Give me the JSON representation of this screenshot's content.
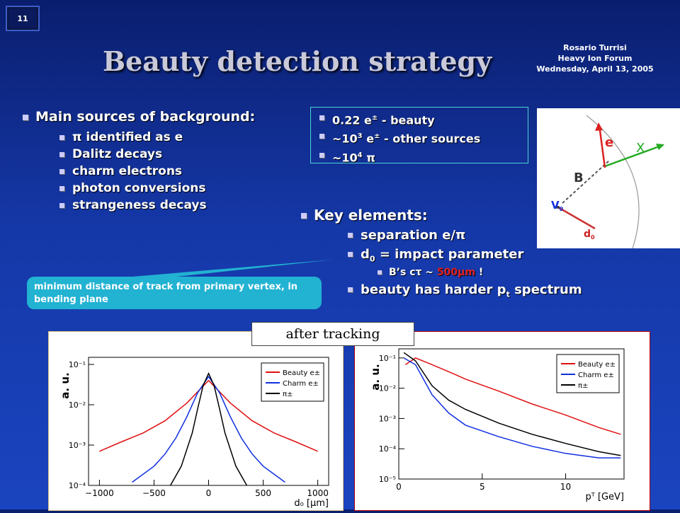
{
  "slide": {
    "number": "11",
    "title": "Beauty detection strategy"
  },
  "author": {
    "name": "Rosario Turrisi",
    "event": "Heavy Ion Forum",
    "date": "Wednesday, April 13, 2005"
  },
  "background": {
    "heading": "Main sources of background:",
    "items": [
      "π identified as e",
      "Dalitz decays",
      "charm electrons",
      "photon conversions",
      "strangeness decays"
    ]
  },
  "rates": {
    "items": [
      {
        "pre": "0.22 e",
        "sup": "±",
        "post": " - beauty"
      },
      {
        "pre": "~10",
        "sup": "3",
        "mid": " e",
        "sup2": "±",
        "post": " - other sources"
      },
      {
        "pre": "~10",
        "sup": "4",
        "post": " π"
      }
    ]
  },
  "diagram": {
    "labels": {
      "e": "e",
      "x": "X",
      "b": "B",
      "v0": "V",
      "v0_sub": "0",
      "d0": "d",
      "d0_sub": "0"
    }
  },
  "key": {
    "heading": "Key elements:",
    "sep": "separation e/π",
    "d0_pre": "d",
    "d0_sub": "0",
    "d0_post": " = impact parameter",
    "ctau_pre": "B’s cτ ~ ",
    "ctau_val": "500μm",
    "ctau_post": " !",
    "spec_pre": "beauty has harder p",
    "spec_sub": "t",
    "spec_post": " spectrum"
  },
  "callout": {
    "text": "minimum distance of track from primary vertex, in bending plane"
  },
  "after_tracking": "after tracking",
  "colors": {
    "beauty": "#e01010",
    "charm": "#1030e0",
    "pion": "#000000"
  },
  "chart_data": [
    {
      "type": "line",
      "ylabel": "a. u.",
      "xlabel": "d₀ [μm]",
      "xlim": [
        -1100,
        1100
      ],
      "ylim": [
        0.0001,
        0.15
      ],
      "yscale": "log",
      "xticks": [
        "−1000",
        "−500",
        "0",
        "500",
        "1000"
      ],
      "yticks": [
        "10⁻⁴",
        "10⁻³",
        "10⁻²",
        "10⁻¹"
      ],
      "legend_position": "top-right",
      "series": [
        {
          "name": "Beauty e±",
          "x": [
            -1000,
            -800,
            -600,
            -400,
            -200,
            0,
            200,
            400,
            600,
            800,
            1000
          ],
          "y": [
            0.0007,
            0.0012,
            0.002,
            0.004,
            0.011,
            0.04,
            0.011,
            0.004,
            0.002,
            0.0012,
            0.0007
          ]
        },
        {
          "name": "Charm e±",
          "x": [
            -700,
            -500,
            -400,
            -300,
            -200,
            -100,
            0,
            100,
            200,
            300,
            400,
            500,
            700
          ],
          "y": [
            0.00012,
            0.0003,
            0.0006,
            0.0015,
            0.005,
            0.02,
            0.05,
            0.02,
            0.005,
            0.0015,
            0.0006,
            0.0003,
            0.00012
          ]
        },
        {
          "name": "π±",
          "x": [
            -350,
            -250,
            -150,
            -100,
            -50,
            0,
            50,
            100,
            150,
            250,
            350
          ],
          "y": [
            0.0001,
            0.0003,
            0.002,
            0.008,
            0.03,
            0.06,
            0.03,
            0.008,
            0.002,
            0.0003,
            0.0001
          ]
        }
      ]
    },
    {
      "type": "line",
      "ylabel": "a. u.",
      "xlabel": "pᵀ [GeV]",
      "xlim": [
        0,
        13.5
      ],
      "ylim": [
        1e-05,
        0.2
      ],
      "yscale": "log",
      "xticks": [
        "0",
        "5",
        "10"
      ],
      "yticks": [
        "10⁻⁵",
        "10⁻⁴",
        "10⁻³",
        "10⁻²",
        "10⁻¹"
      ],
      "legend_position": "top-right",
      "series": [
        {
          "name": "Beauty e±",
          "x": [
            0.4,
            1,
            2,
            3,
            4,
            6,
            8,
            10,
            12,
            13.3
          ],
          "y": [
            0.06,
            0.1,
            0.06,
            0.035,
            0.02,
            0.008,
            0.003,
            0.0013,
            0.0005,
            0.0003
          ]
        },
        {
          "name": "Charm e±",
          "x": [
            0.3,
            1,
            2,
            3,
            4,
            6,
            8,
            10,
            12,
            13.3
          ],
          "y": [
            0.1,
            0.06,
            0.006,
            0.0015,
            0.0006,
            0.00025,
            0.00012,
            7e-05,
            5e-05,
            5e-05
          ]
        },
        {
          "name": "π±",
          "x": [
            0.3,
            1,
            2,
            3,
            4,
            6,
            8,
            10,
            12,
            13.3
          ],
          "y": [
            0.15,
            0.08,
            0.012,
            0.004,
            0.002,
            0.0007,
            0.0003,
            0.00015,
            8e-05,
            6e-05
          ]
        }
      ]
    }
  ]
}
